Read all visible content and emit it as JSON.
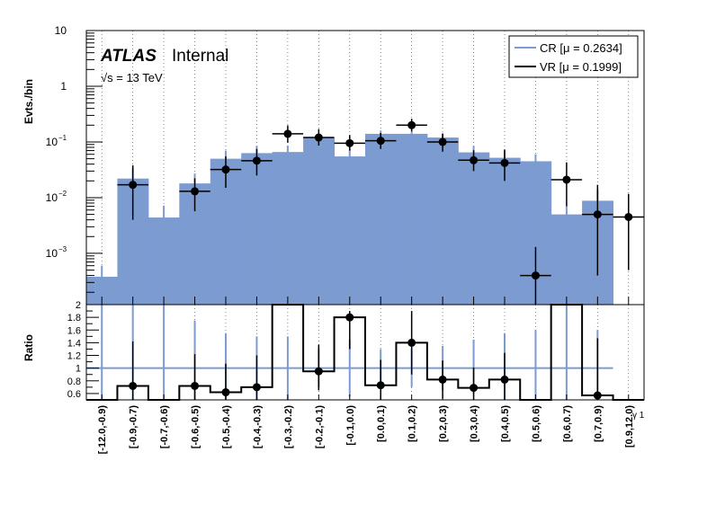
{
  "chart_data": {
    "type": "bar",
    "categories": [
      "[-12.0,-0.9)",
      "[-0.9,-0.7)",
      "[-0.7,-0.6)",
      "[-0.6,-0.5)",
      "[-0.5,-0.4)",
      "[-0.4,-0.3)",
      "[-0.3,-0.2)",
      "[-0.2,-0.1)",
      "[-0.1,0.0)",
      "[0.0,0.1)",
      "[0.1,0.2)",
      "[0.2,0.3)",
      "[0.3,0.4)",
      "[0.4,0.5)",
      "[0.5,0.6)",
      "[0.6,0.7)",
      "[0.7,0.9)",
      "[0.9,12.0)"
    ],
    "xlabel": "γ 1",
    "top_panel": {
      "ylabel": "Evts./bin",
      "yscale": "log",
      "ylim": [
        0.00012,
        10
      ],
      "yticks": [
        {
          "value": 10,
          "label": "10"
        },
        {
          "value": 1,
          "label": "1"
        },
        {
          "value": 0.1,
          "base": "10",
          "exp": "−1"
        },
        {
          "value": 0.01,
          "base": "10",
          "exp": "−2"
        },
        {
          "value": 0.001,
          "base": "10",
          "exp": "−3"
        }
      ],
      "series": [
        {
          "name": "CR [μ = 0.2634]",
          "style": "filled-histogram",
          "color": "#7b9bd1",
          "values": [
            0.00038,
            0.022,
            0.0044,
            0.018,
            0.05,
            0.063,
            0.066,
            0.12,
            0.055,
            0.14,
            0.14,
            0.12,
            0.065,
            0.052,
            0.045,
            0.005,
            0.0088,
            null
          ],
          "err_lo": [
            0.00018,
            0.005,
            0.0016,
            0.005,
            0.012,
            0.012,
            0.012,
            0.015,
            0.012,
            0.015,
            0.015,
            0.015,
            0.012,
            0.01,
            0.009,
            0.002,
            0.003,
            null
          ],
          "err_hi": [
            0.00022,
            0.012,
            0.0028,
            0.009,
            0.02,
            0.022,
            0.02,
            0.02,
            0.02,
            0.02,
            0.02,
            0.02,
            0.02,
            0.018,
            0.015,
            0.002,
            0.005,
            null
          ]
        },
        {
          "name": "VR [μ = 0.1999]",
          "style": "points",
          "color": "#000000",
          "values": [
            null,
            0.017,
            null,
            0.013,
            0.032,
            0.046,
            0.14,
            0.12,
            0.095,
            0.105,
            0.2,
            0.1,
            0.047,
            0.042,
            0.0004,
            0.021,
            0.005,
            0.0045
          ],
          "err_lo": [
            null,
            0.013,
            null,
            0.0073,
            0.017,
            0.021,
            0.043,
            0.034,
            0.025,
            0.03,
            0.045,
            0.033,
            0.017,
            0.022,
            0.00028,
            0.014,
            0.0046,
            0.004
          ],
          "err_hi": [
            null,
            0.021,
            null,
            0.0093,
            0.023,
            0.029,
            0.058,
            0.05,
            0.038,
            0.04,
            0.06,
            0.042,
            0.024,
            0.031,
            0.0009,
            0.022,
            0.012,
            0.0072
          ]
        }
      ],
      "legend": {
        "position": "top-right",
        "entries": [
          "CR [μ = 0.2634]",
          "VR [μ = 0.1999]"
        ]
      },
      "annotation": {
        "experiment": "ATLAS",
        "status": "Internal",
        "energy": "√s = 13 TeV"
      },
      "grid": "vertical-dotted"
    },
    "ratio_panel": {
      "ylabel": "Ratio",
      "ylim": [
        0.5,
        2.0
      ],
      "yticks": [
        "2",
        "1.8",
        "1.6",
        "1.4",
        "1.2",
        "1",
        "0.8",
        "0.6"
      ],
      "reference_line": 1,
      "ref_errors": [
        {
          "lo": 0.5,
          "hi": 2.0
        },
        {
          "lo": 0.5,
          "hi": 2.0
        },
        {
          "lo": 0.5,
          "hi": 2.0
        },
        {
          "lo": 0.5,
          "hi": 1.75
        },
        {
          "lo": 0.5,
          "hi": 1.55
        },
        {
          "lo": 0.5,
          "hi": 1.5
        },
        {
          "lo": 0.5,
          "hi": 1.5
        },
        {
          "lo": 0.7,
          "hi": 1.3
        },
        {
          "lo": 0.55,
          "hi": 1.45
        },
        {
          "lo": 0.7,
          "hi": 1.3
        },
        {
          "lo": 0.7,
          "hi": 1.3
        },
        {
          "lo": 0.65,
          "hi": 1.35
        },
        {
          "lo": 0.6,
          "hi": 1.45
        },
        {
          "lo": 0.5,
          "hi": 1.55
        },
        {
          "lo": 0.5,
          "hi": 1.6
        },
        {
          "lo": 0.5,
          "hi": 2.0
        },
        {
          "lo": 0.5,
          "hi": 1.6
        },
        null
      ],
      "values": [
        null,
        0.72,
        null,
        0.72,
        0.62,
        0.7,
        2.12,
        0.95,
        1.8,
        0.73,
        1.4,
        0.82,
        0.69,
        0.82,
        null,
        2.1,
        0.57,
        null
      ],
      "err_lo": [
        null,
        0.55,
        null,
        0.5,
        0.35,
        0.35,
        0.0,
        0.3,
        0.5,
        0.33,
        0.5,
        0.3,
        0.3,
        0.42,
        null,
        0.0,
        0.6,
        null
      ],
      "err_hi": [
        null,
        0.7,
        null,
        0.5,
        0.45,
        0.5,
        0.0,
        0.42,
        0.1,
        0.4,
        0.5,
        0.3,
        0.32,
        0.42,
        null,
        0.0,
        0.9,
        null
      ]
    }
  }
}
